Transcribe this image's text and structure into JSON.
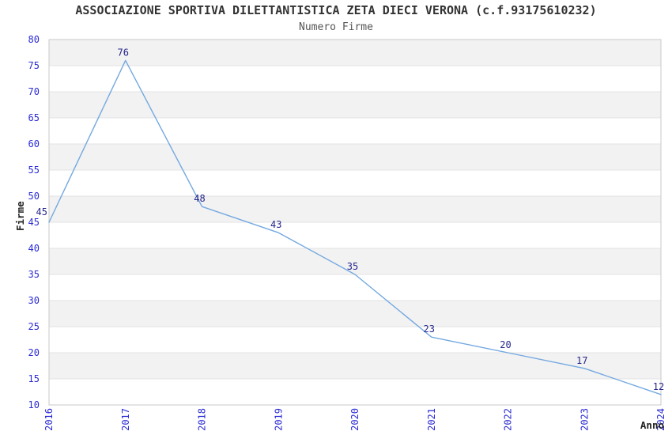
{
  "header": {
    "title": "ASSOCIAZIONE SPORTIVA DILETTANTISTICA ZETA DIECI VERONA (c.f.93175610232)",
    "subtitle": "Numero Firme"
  },
  "chart_data": {
    "type": "line",
    "title": "ASSOCIAZIONE SPORTIVA DILETTANTISTICA ZETA DIECI VERONA (c.f.93175610232)",
    "subtitle": "Numero Firme",
    "xlabel": "Anno",
    "ylabel": "Firme",
    "categories": [
      "2016",
      "2017",
      "2018",
      "2019",
      "2020",
      "2021",
      "2022",
      "2023",
      "2024"
    ],
    "values": [
      45,
      76,
      48,
      43,
      35,
      23,
      20,
      17,
      12
    ],
    "ylim": [
      10,
      80
    ],
    "ytick_step": 5,
    "yticks": [
      10,
      15,
      20,
      25,
      30,
      35,
      40,
      45,
      50,
      55,
      60,
      65,
      70,
      75,
      80
    ],
    "grid": "horizontal-bands-alternating",
    "legend_position": "none",
    "colors": {
      "line": "#74A9E0",
      "tick_label": "#2B2BD5",
      "data_label": "#26268C",
      "band_gray": "#F2F2F2",
      "band_white": "#FFFFFF",
      "gridline": "#E3E3E3",
      "plot_border": "#C9C9C9",
      "title": "#333333",
      "subtitle": "#555555",
      "axis_title": "#222222"
    }
  }
}
